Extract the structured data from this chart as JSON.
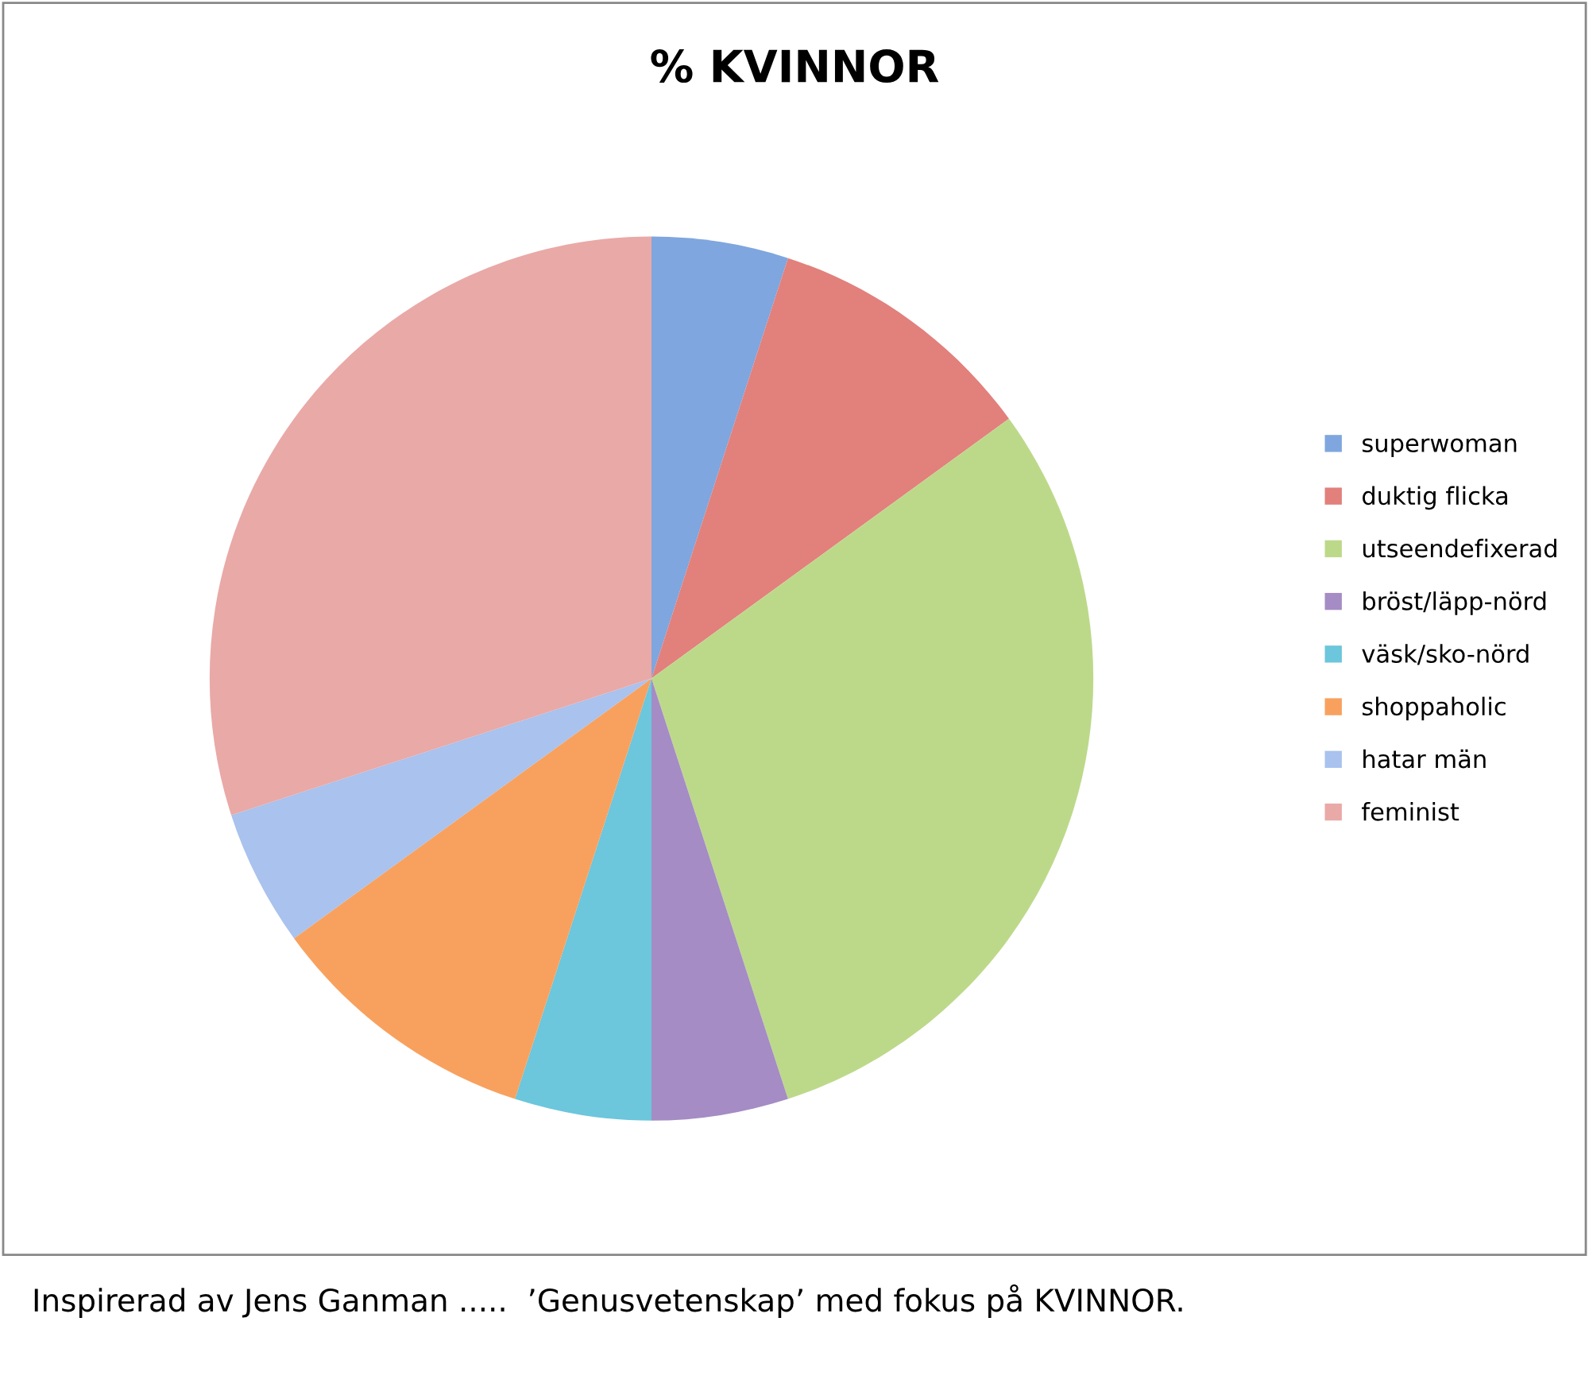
{
  "chart_data": {
    "type": "pie",
    "title": "% KVINNOR",
    "categories": [
      "superwoman",
      "duktig flicka",
      "utseendefixerad",
      "bröst/läpp-nörd",
      "väsk/sko-nörd",
      "shoppaholic",
      "hatar män",
      "feminist"
    ],
    "values": [
      5,
      10,
      30,
      5,
      5,
      10,
      5,
      30
    ],
    "colors": [
      "#7fa6de",
      "#e2807c",
      "#bcd98a",
      "#a58cc4",
      "#6cc6dc",
      "#f8a15e",
      "#a9c2ee",
      "#e9a9a7"
    ],
    "legend": "right",
    "annotations": [
      "Inspirerad av Jens Ganman .....  ’Genusvetenskap’ med fokus på KVINNOR."
    ]
  }
}
